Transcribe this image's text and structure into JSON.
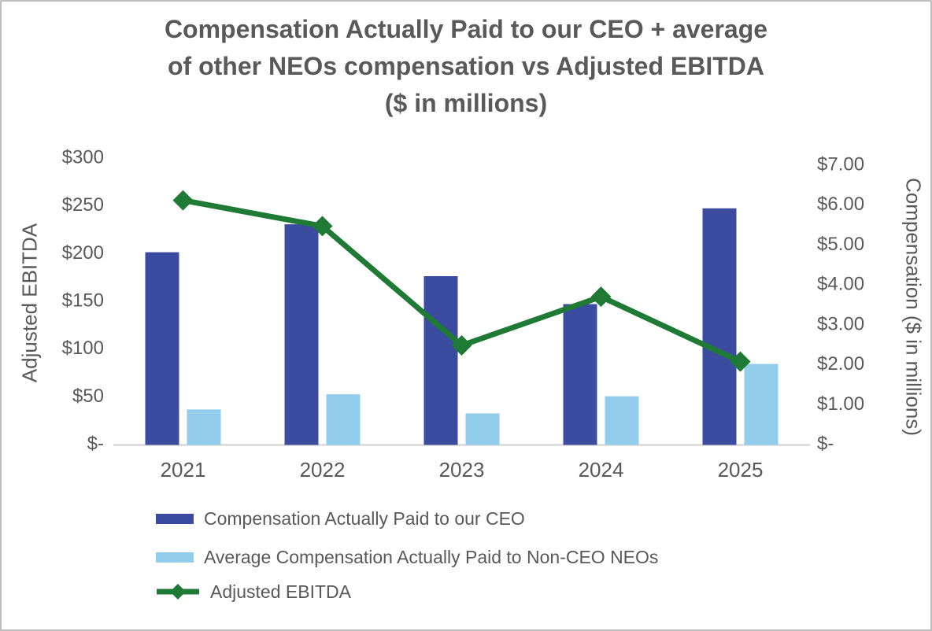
{
  "title": {
    "lines": [
      "Compensation Actually Paid to our CEO + average",
      "of other NEOs compensation vs Adjusted EBITDA",
      "($ in millions)"
    ]
  },
  "colors": {
    "ceo_bar": "#3B4BA0",
    "neo_bar": "#92CEEC",
    "ebitda_line": "#1E7A34",
    "text": "#595959",
    "axis_line": "#D9D9D9",
    "frame_border": "#BDBDBD"
  },
  "chart_data": {
    "type": "combo bar+line, dual axis",
    "title": "Compensation Actually Paid to our CEO + average of other NEOs compensation vs Adjusted EBITDA ($ in millions)",
    "categories": [
      "2021",
      "2022",
      "2023",
      "2024",
      "2025"
    ],
    "series": [
      {
        "name": "Compensation Actually Paid to our CEO",
        "type": "bar",
        "axis": "right",
        "color": "#3B4BA0",
        "values": [
          4.8,
          5.5,
          4.2,
          3.5,
          5.9
        ]
      },
      {
        "name": "Average Compensation Actually Paid to Non-CEO NEOs",
        "type": "bar",
        "axis": "right",
        "color": "#92CEEC",
        "values": [
          0.86,
          1.24,
          0.76,
          1.19,
          2.0
        ]
      },
      {
        "name": "Adjusted EBITDA",
        "type": "line",
        "axis": "left",
        "color": "#1E7A34",
        "marker": "diamond",
        "values": [
          255,
          228,
          103,
          154,
          86
        ]
      }
    ],
    "axes": {
      "left": {
        "label": "Adjusted EBITDA",
        "ticks": [
          "$300",
          "$250",
          "$200",
          "$150",
          "$100",
          "$50",
          "$-"
        ],
        "range": [
          0,
          300
        ]
      },
      "right": {
        "label": "Compensation ($ in millions)",
        "ticks": [
          "$7.00",
          "$6.00",
          "$5.00",
          "$4.00",
          "$3.00",
          "$2.00",
          "$1.00",
          "$-"
        ],
        "range": [
          0,
          7
        ]
      }
    },
    "grid": false,
    "legend_position": "bottom-left"
  }
}
